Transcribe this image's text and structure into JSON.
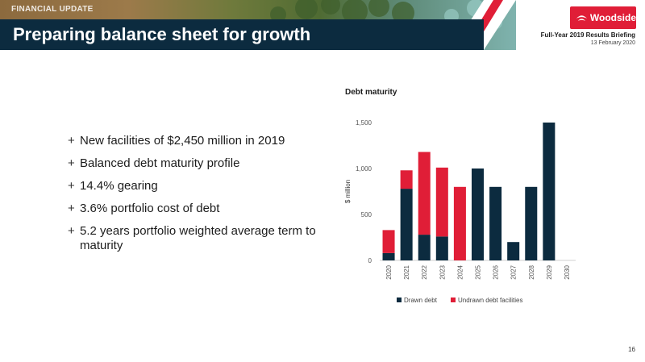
{
  "header": {
    "section_tag": "FINANCIAL UPDATE",
    "title": "Preparing balance sheet for growth",
    "logo_text": "Woodside",
    "event": "Full-Year 2019 Results Briefing",
    "date": "13 February 2020"
  },
  "bullets": [
    "New facilities of $2,450 million in 2019",
    "Balanced debt maturity profile",
    "14.4% gearing",
    "3.6% portfolio cost of debt",
    "5.2 years portfolio weighted average term to maturity"
  ],
  "bullet_marker": "+",
  "page_number": "16",
  "colors": {
    "navy": "#0c2b3f",
    "red": "#e01e37",
    "drawn": "#0c2b3f",
    "undrawn": "#e01e37"
  },
  "chart_data": {
    "type": "bar",
    "stacked": true,
    "title": "Debt maturity",
    "ylabel": "$ million",
    "xlabel": "",
    "ylim": [
      0,
      1500
    ],
    "yticks": [
      0,
      500,
      1000,
      1500
    ],
    "ytick_labels": [
      "0",
      "500",
      "1,000",
      "1,500"
    ],
    "grid": false,
    "legend_position": "bottom",
    "categories": [
      "2020",
      "2021",
      "2022",
      "2023",
      "2024",
      "2025",
      "2026",
      "2027",
      "2028",
      "2029",
      "2030"
    ],
    "series": [
      {
        "name": "Drawn debt",
        "color": "#0c2b3f",
        "values": [
          80,
          780,
          280,
          260,
          0,
          1000,
          800,
          200,
          800,
          1500,
          0
        ]
      },
      {
        "name": "Undrawn debt facilities",
        "color": "#e01e37",
        "values": [
          250,
          200,
          900,
          750,
          800,
          0,
          0,
          0,
          0,
          0,
          0
        ]
      }
    ]
  }
}
